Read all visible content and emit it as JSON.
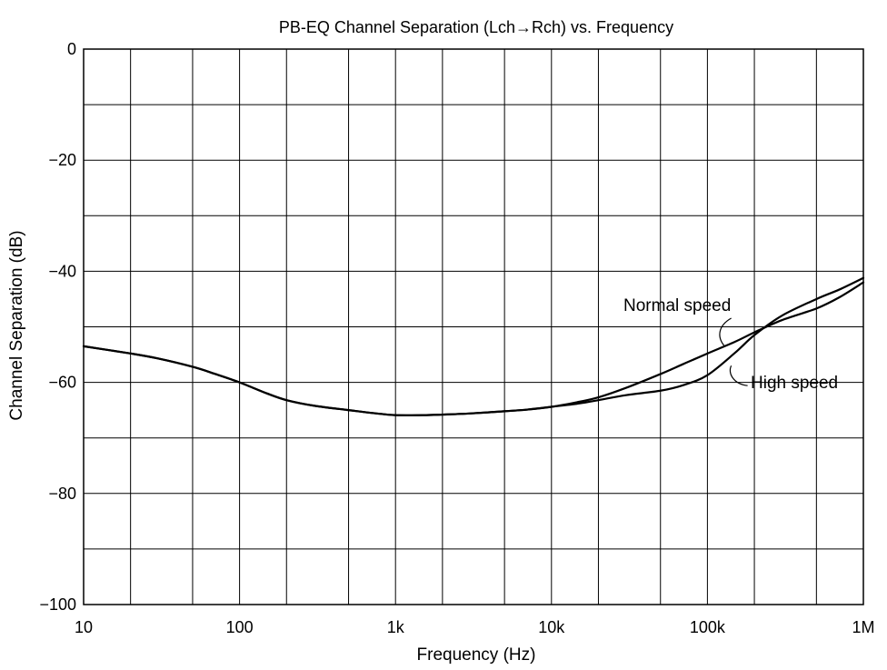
{
  "chart_data": {
    "type": "line",
    "title": "PB-EQ Channel Separation (Lch→Rch) vs. Frequency",
    "xlabel": "Frequency  (Hz)",
    "ylabel": "Channel Separation  (dB)",
    "x_scale": "log",
    "xlim": [
      10,
      1000000
    ],
    "ylim": [
      -100,
      0
    ],
    "x_ticks": [
      10,
      100,
      1000,
      10000,
      100000,
      1000000
    ],
    "x_tick_labels": [
      "10",
      "100",
      "1k",
      "10k",
      "100k",
      "1M"
    ],
    "y_ticks": [
      0,
      -20,
      -40,
      -60,
      -80,
      -100
    ],
    "y_tick_labels": [
      "0",
      "−20",
      "−40",
      "−60",
      "−80",
      "−100"
    ],
    "grid": true,
    "series": [
      {
        "name": "Normal speed",
        "x": [
          10,
          20,
          30,
          50,
          70,
          100,
          150,
          200,
          300,
          500,
          700,
          1000,
          1500,
          2000,
          3000,
          5000,
          7000,
          10000,
          15000,
          20000,
          30000,
          50000,
          70000,
          100000,
          150000,
          200000,
          300000,
          500000,
          700000,
          1000000
        ],
        "y": [
          -53.5,
          -54.8,
          -55.7,
          -57.2,
          -58.5,
          -60.0,
          -62.0,
          -63.2,
          -64.2,
          -65.0,
          -65.5,
          -65.9,
          -65.9,
          -65.8,
          -65.6,
          -65.2,
          -64.9,
          -64.4,
          -63.5,
          -62.7,
          -61.0,
          -58.5,
          -56.7,
          -54.8,
          -52.7,
          -51.0,
          -48.8,
          -46.7,
          -44.7,
          -42.0
        ]
      },
      {
        "name": "High speed",
        "x": [
          10,
          20,
          30,
          50,
          70,
          100,
          150,
          200,
          300,
          500,
          700,
          1000,
          1500,
          2000,
          3000,
          5000,
          7000,
          10000,
          15000,
          20000,
          30000,
          50000,
          70000,
          100000,
          150000,
          200000,
          300000,
          500000,
          700000,
          1000000
        ],
        "y": [
          -53.5,
          -54.8,
          -55.7,
          -57.2,
          -58.5,
          -60.0,
          -62.0,
          -63.2,
          -64.2,
          -65.0,
          -65.5,
          -65.9,
          -65.9,
          -65.8,
          -65.6,
          -65.2,
          -64.9,
          -64.4,
          -63.8,
          -63.2,
          -62.3,
          -61.5,
          -60.5,
          -58.7,
          -54.7,
          -51.5,
          -48.0,
          -45.0,
          -43.3,
          -41.2
        ]
      }
    ],
    "annotations": [
      {
        "text": "Normal speed",
        "series": "Normal speed",
        "x": 150000,
        "y": -52.7
      },
      {
        "text": "High speed",
        "series": "High speed",
        "x": 150000,
        "y": -54.7
      }
    ]
  }
}
